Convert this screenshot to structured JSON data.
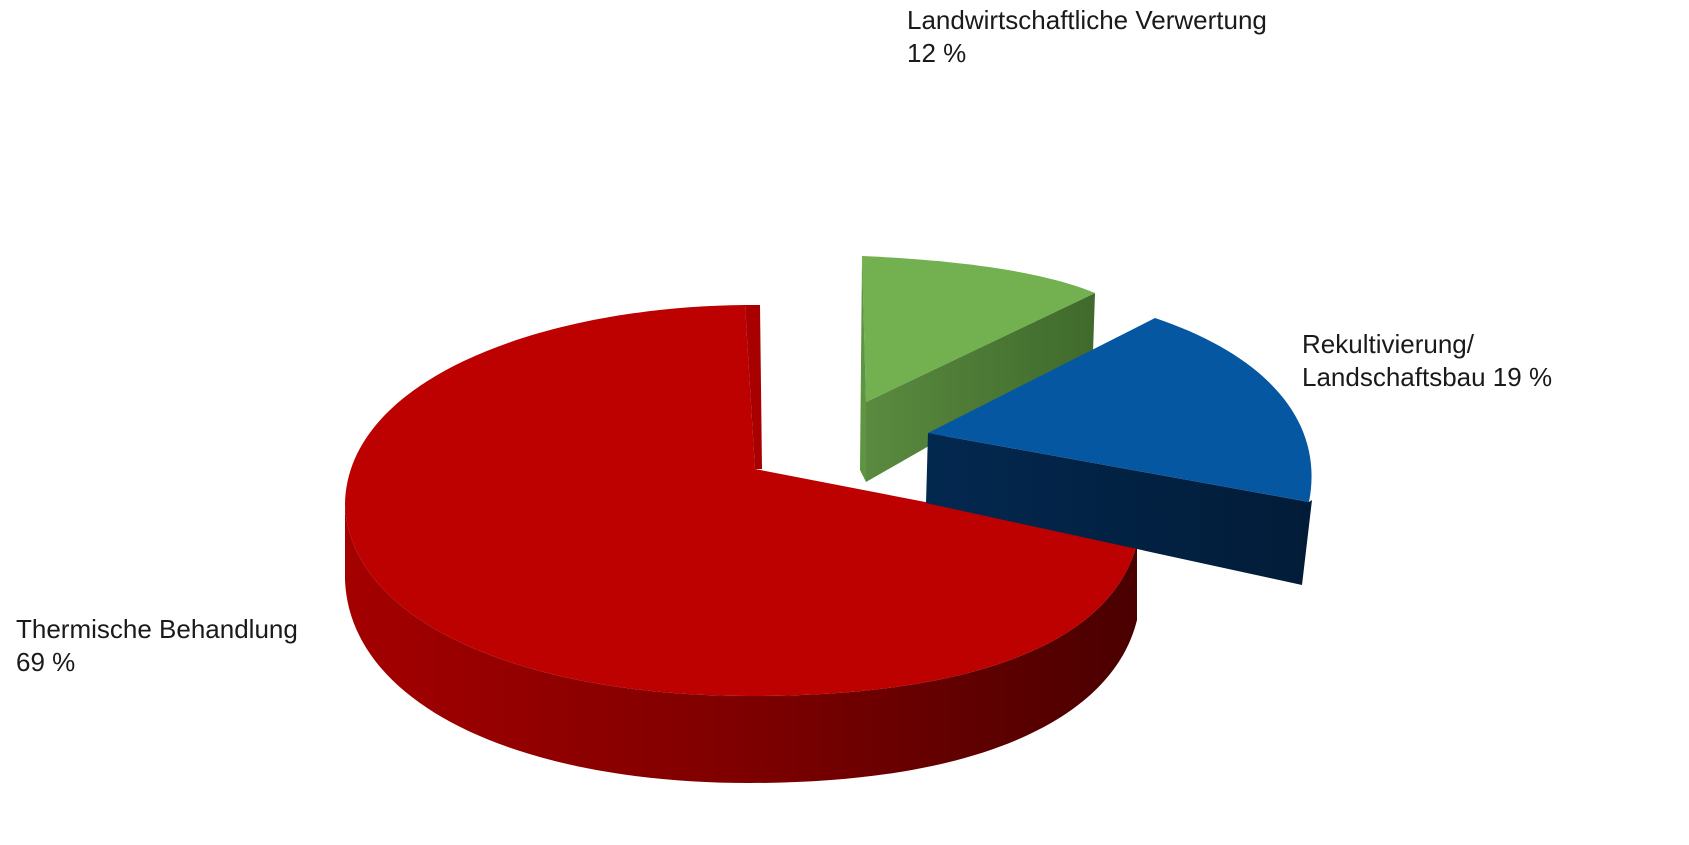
{
  "chart_data": {
    "type": "pie",
    "style": "3d-exploded",
    "title": "",
    "slices": [
      {
        "label_lines": [
          "Thermische Behandlung",
          "69 %"
        ],
        "value": 69,
        "color": "#bf0000",
        "side_color": "#7a0000"
      },
      {
        "label_lines": [
          "Landwirtschaftliche Verwertung",
          "12 %"
        ],
        "value": 12,
        "color": "#6fb04f",
        "side_color": "#4a7434"
      },
      {
        "label_lines": [
          "Rekultivierung/",
          "Landschaftsbau 19 %"
        ],
        "value": 19,
        "color": "#0558a3",
        "side_color": "#03264a"
      }
    ]
  }
}
